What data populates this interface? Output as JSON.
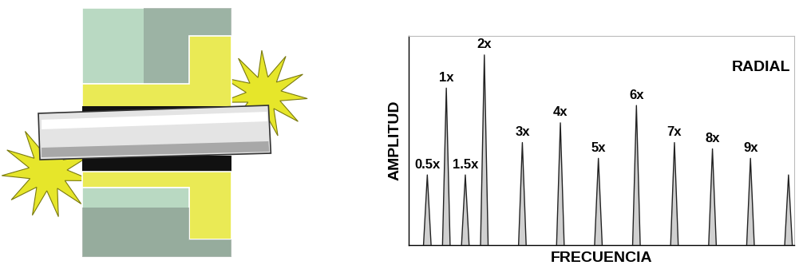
{
  "chart_data": {
    "type": "spectrum",
    "x": [
      0.5,
      1,
      1.5,
      2,
      3,
      4,
      5,
      6,
      7,
      8,
      9,
      10
    ],
    "labels": [
      "0.5x",
      "1x",
      "1.5x",
      "2x",
      "3x",
      "4x",
      "5x",
      "6x",
      "7x",
      "8x",
      "9x",
      null
    ],
    "values": [
      89,
      199,
      89,
      241,
      130,
      155,
      110,
      177,
      130,
      122,
      110,
      89
    ],
    "xlabel": "FRECUENCIA",
    "ylabel": "AMPLITUD",
    "annotation": "RADIAL",
    "xlim": [
      0,
      10.15
    ],
    "ylim": [
      0,
      265
    ],
    "tick_labels": false,
    "color": "#d0d0d0"
  }
}
